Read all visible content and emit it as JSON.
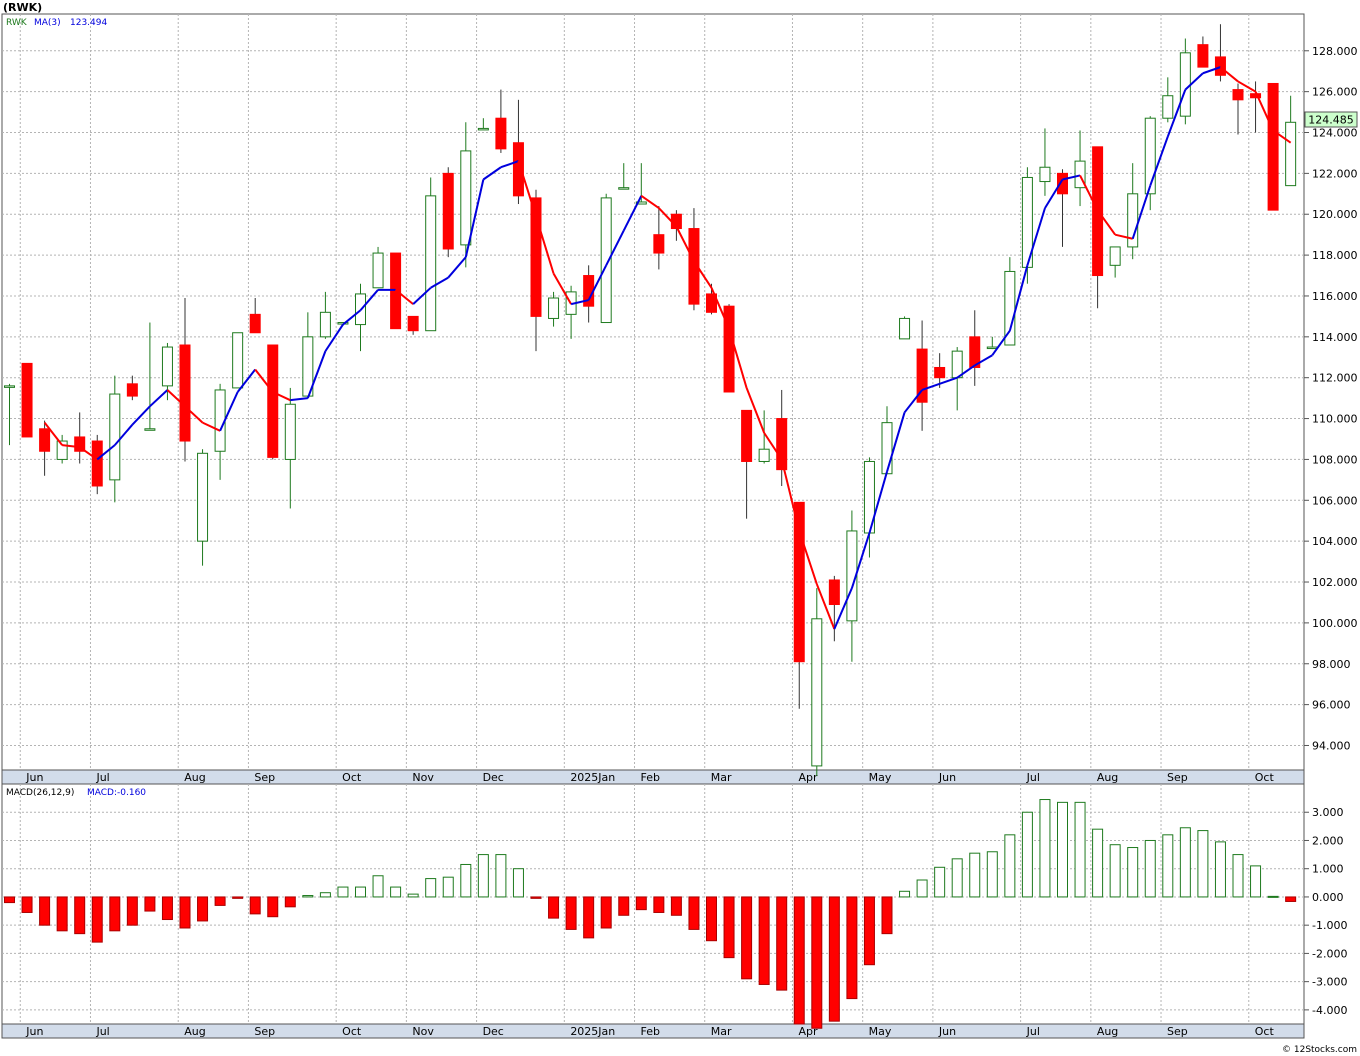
{
  "header": {
    "symbol": "(RWK)",
    "footer": "© 12Stocks.com"
  },
  "colors": {
    "up": "#1e7a1e",
    "down": "#ff0000",
    "ma_up": "#0000dd",
    "ma_down": "#ff0000",
    "grid": "#b4b4b4",
    "axis_band": "#d2dcea",
    "price_box": "#ccffcc"
  },
  "chart_data": [
    {
      "type": "candlestick",
      "legend": {
        "symbol": "RWK",
        "ma_label": "MA(3)",
        "ma_value": "123.494"
      },
      "last_price": "124.485",
      "ylim": [
        92.8,
        129.8
      ],
      "yticks": [
        "94.000",
        "96.000",
        "98.000",
        "100.000",
        "102.000",
        "104.000",
        "106.000",
        "108.000",
        "110.000",
        "112.000",
        "114.000",
        "116.000",
        "118.000",
        "120.000",
        "122.000",
        "124.000",
        "126.000",
        "128.000"
      ],
      "month_labels": [
        {
          "i": 1,
          "label": "Jun"
        },
        {
          "i": 5,
          "label": "Jul"
        },
        {
          "i": 10,
          "label": "Aug"
        },
        {
          "i": 14,
          "label": "Sep"
        },
        {
          "i": 19,
          "label": "Oct"
        },
        {
          "i": 23,
          "label": "Nov"
        },
        {
          "i": 27,
          "label": "Dec"
        },
        {
          "i": 32,
          "label": "2025Jan"
        },
        {
          "i": 36,
          "label": "Feb"
        },
        {
          "i": 40,
          "label": "Mar"
        },
        {
          "i": 45,
          "label": "Apr"
        },
        {
          "i": 49,
          "label": "May"
        },
        {
          "i": 53,
          "label": "Jun"
        },
        {
          "i": 58,
          "label": "Jul"
        },
        {
          "i": 62,
          "label": "Aug"
        },
        {
          "i": 66,
          "label": "Sep"
        },
        {
          "i": 71,
          "label": "Oct"
        }
      ],
      "candles": [
        [
          111.6,
          111.7,
          108.7,
          111.6
        ],
        [
          112.7,
          112.7,
          109.1,
          109.1
        ],
        [
          109.5,
          109.9,
          107.2,
          108.4
        ],
        [
          108.0,
          109.2,
          107.8,
          108.9
        ],
        [
          109.1,
          110.3,
          107.8,
          108.4
        ],
        [
          108.9,
          109.2,
          106.3,
          106.7
        ],
        [
          107.0,
          112.1,
          105.9,
          111.2
        ],
        [
          111.7,
          112.1,
          110.9,
          111.1
        ],
        [
          109.5,
          114.7,
          109.5,
          109.5
        ],
        [
          111.6,
          113.7,
          110.9,
          113.5
        ],
        [
          113.6,
          115.9,
          107.9,
          108.9
        ],
        [
          104.0,
          108.5,
          102.8,
          108.3
        ],
        [
          108.4,
          111.7,
          107.0,
          111.4
        ],
        [
          111.5,
          114.2,
          111.5,
          114.2
        ],
        [
          115.1,
          115.9,
          114.2,
          114.2
        ],
        [
          113.6,
          113.6,
          108.0,
          108.1
        ],
        [
          108.0,
          111.5,
          105.6,
          110.7
        ],
        [
          111.1,
          115.2,
          111.0,
          114.0
        ],
        [
          114.0,
          116.2,
          113.9,
          115.2
        ],
        [
          114.7,
          114.7,
          114.7,
          114.7
        ],
        [
          114.6,
          116.6,
          113.3,
          116.1
        ],
        [
          116.4,
          118.4,
          116.4,
          118.1
        ],
        [
          118.1,
          118.1,
          114.4,
          114.4
        ],
        [
          115.0,
          115.0,
          114.1,
          114.3
        ],
        [
          114.3,
          121.8,
          114.3,
          120.9
        ],
        [
          122.0,
          122.3,
          117.9,
          118.3
        ],
        [
          118.5,
          124.5,
          117.4,
          123.1
        ],
        [
          124.2,
          124.7,
          124.2,
          124.2
        ],
        [
          124.7,
          126.1,
          123.0,
          123.2
        ],
        [
          123.5,
          125.6,
          120.5,
          120.9
        ],
        [
          120.8,
          121.2,
          113.3,
          115.0
        ],
        [
          114.9,
          116.2,
          114.5,
          115.9
        ],
        [
          115.1,
          116.5,
          113.9,
          116.2
        ],
        [
          117.0,
          117.5,
          114.7,
          115.5
        ],
        [
          114.7,
          121.0,
          114.7,
          120.8
        ],
        [
          121.3,
          122.5,
          121.3,
          121.3
        ],
        [
          120.5,
          122.5,
          120.5,
          120.6
        ],
        [
          119.0,
          120.4,
          117.3,
          118.1
        ],
        [
          120.0,
          120.2,
          118.7,
          119.3
        ],
        [
          119.3,
          120.3,
          115.3,
          115.6
        ],
        [
          116.1,
          116.6,
          115.1,
          115.2
        ],
        [
          115.5,
          115.6,
          111.3,
          111.3
        ],
        [
          110.4,
          110.4,
          105.1,
          107.9
        ],
        [
          107.9,
          110.4,
          107.8,
          108.5
        ],
        [
          110.0,
          111.4,
          106.7,
          107.5
        ],
        [
          105.9,
          105.9,
          95.8,
          98.1
        ],
        [
          93.0,
          101.7,
          92.5,
          100.2
        ],
        [
          102.1,
          102.3,
          99.1,
          100.9
        ],
        [
          100.1,
          105.5,
          98.1,
          104.5
        ],
        [
          104.4,
          108.1,
          103.2,
          107.9
        ],
        [
          107.3,
          110.6,
          107.3,
          109.8
        ],
        [
          113.9,
          115.0,
          113.9,
          114.9
        ],
        [
          113.4,
          114.8,
          109.4,
          110.8
        ],
        [
          112.5,
          113.2,
          111.5,
          112.0
        ],
        [
          112.0,
          113.5,
          110.4,
          113.3
        ],
        [
          114.0,
          115.3,
          111.6,
          112.5
        ],
        [
          113.5,
          114.0,
          113.4,
          113.5
        ],
        [
          113.6,
          117.9,
          113.6,
          117.2
        ],
        [
          117.4,
          122.3,
          116.6,
          121.8
        ],
        [
          121.6,
          124.2,
          120.9,
          122.3
        ],
        [
          122.0,
          122.2,
          118.4,
          121.0
        ],
        [
          121.3,
          124.1,
          120.4,
          122.6
        ],
        [
          123.3,
          123.3,
          115.4,
          117.0
        ],
        [
          117.5,
          118.3,
          116.9,
          118.4
        ],
        [
          118.4,
          122.5,
          117.8,
          121.0
        ],
        [
          121.0,
          124.8,
          120.2,
          124.7
        ],
        [
          124.7,
          126.7,
          124.5,
          125.8
        ],
        [
          124.8,
          128.6,
          124.4,
          127.9
        ],
        [
          128.3,
          128.7,
          127.2,
          127.2
        ],
        [
          127.7,
          129.3,
          126.5,
          126.8
        ],
        [
          126.1,
          126.4,
          123.9,
          125.6
        ],
        [
          125.9,
          126.5,
          124.0,
          125.7
        ],
        [
          126.4,
          126.4,
          120.2,
          120.2
        ],
        [
          121.4,
          125.8,
          121.4,
          124.5
        ]
      ],
      "ma": [
        null,
        null,
        109.8,
        108.7,
        108.6,
        108.0,
        108.7,
        109.7,
        110.6,
        111.4,
        110.6,
        109.8,
        109.4,
        111.3,
        112.4,
        111.3,
        110.9,
        111.0,
        113.3,
        114.6,
        115.3,
        116.3,
        116.3,
        115.6,
        116.4,
        116.9,
        117.9,
        121.7,
        122.3,
        122.6,
        119.9,
        117.1,
        115.6,
        115.8,
        117.5,
        119.2,
        120.9,
        120.3,
        119.4,
        117.7,
        116.4,
        114.4,
        111.5,
        109.3,
        108.0,
        104.5,
        101.9,
        99.7,
        101.7,
        104.4,
        107.4,
        110.3,
        111.4,
        111.7,
        112.0,
        112.6,
        113.1,
        114.3,
        117.5,
        120.3,
        121.7,
        121.9,
        120.2,
        119.0,
        118.8,
        121.4,
        123.8,
        126.1,
        126.9,
        127.2,
        126.5,
        126.0,
        124.1,
        123.5
      ],
      "ma_labels": [
        "RWK",
        "MA(3)",
        "123.494"
      ]
    },
    {
      "type": "bar",
      "legend": {
        "label": "MACD(26,12,9)",
        "value_label": "MACD:-0.160"
      },
      "ylim": [
        -4.5,
        4.0
      ],
      "yticks": [
        "3.000",
        "2.000",
        "1.000",
        "0.000",
        "-1.000",
        "-2.000",
        "-3.000",
        "-4.000"
      ],
      "values": [
        -0.2,
        -0.55,
        -1.0,
        -1.2,
        -1.3,
        -1.6,
        -1.2,
        -1.0,
        -0.5,
        -0.8,
        -1.1,
        -0.85,
        -0.3,
        -0.05,
        -0.6,
        -0.7,
        -0.35,
        0.05,
        0.15,
        0.35,
        0.35,
        0.75,
        0.35,
        0.1,
        0.65,
        0.7,
        1.15,
        1.5,
        1.5,
        1.0,
        -0.05,
        -0.75,
        -1.15,
        -1.45,
        -1.1,
        -0.65,
        -0.45,
        -0.55,
        -0.65,
        -1.15,
        -1.55,
        -2.15,
        -2.9,
        -3.1,
        -3.3,
        -4.5,
        -4.65,
        -4.4,
        -3.6,
        -2.4,
        -1.3,
        0.2,
        0.6,
        1.05,
        1.35,
        1.55,
        1.6,
        2.2,
        3.0,
        3.45,
        3.35,
        3.35,
        2.4,
        1.85,
        1.75,
        2.0,
        2.2,
        2.45,
        2.35,
        1.95,
        1.5,
        1.1,
        0.02,
        -0.16
      ]
    }
  ]
}
